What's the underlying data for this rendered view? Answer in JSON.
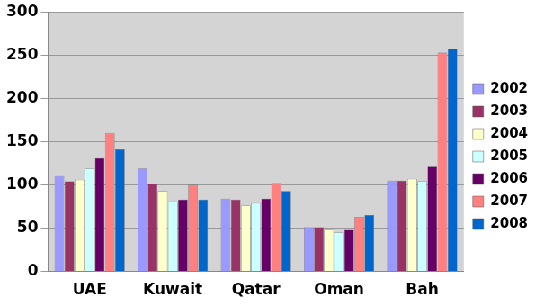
{
  "chart_data": {
    "type": "bar",
    "categories": [
      "UAE",
      "Kuwait",
      "Qatar",
      "Oman",
      "Bah"
    ],
    "series": [
      {
        "name": "2002",
        "color": "#9999ff",
        "values": [
          110,
          119,
          84,
          51,
          105
        ]
      },
      {
        "name": "2003",
        "color": "#993366",
        "values": [
          104,
          101,
          83,
          51,
          105
        ]
      },
      {
        "name": "2004",
        "color": "#ffffcc",
        "values": [
          106,
          93,
          76,
          48,
          107
        ]
      },
      {
        "name": "2005",
        "color": "#ccffff",
        "values": [
          119,
          81,
          79,
          45,
          104
        ]
      },
      {
        "name": "2006",
        "color": "#660066",
        "values": [
          131,
          83,
          84,
          48,
          121
        ]
      },
      {
        "name": "2007",
        "color": "#ff8080",
        "values": [
          160,
          100,
          102,
          63,
          253
        ]
      },
      {
        "name": "2008",
        "color": "#0066cc",
        "values": [
          141,
          83,
          93,
          65,
          257
        ]
      }
    ],
    "ylim": [
      0,
      300
    ],
    "yticks": [
      0,
      50,
      100,
      150,
      200,
      250,
      300
    ],
    "grid": true,
    "legend": "right"
  }
}
